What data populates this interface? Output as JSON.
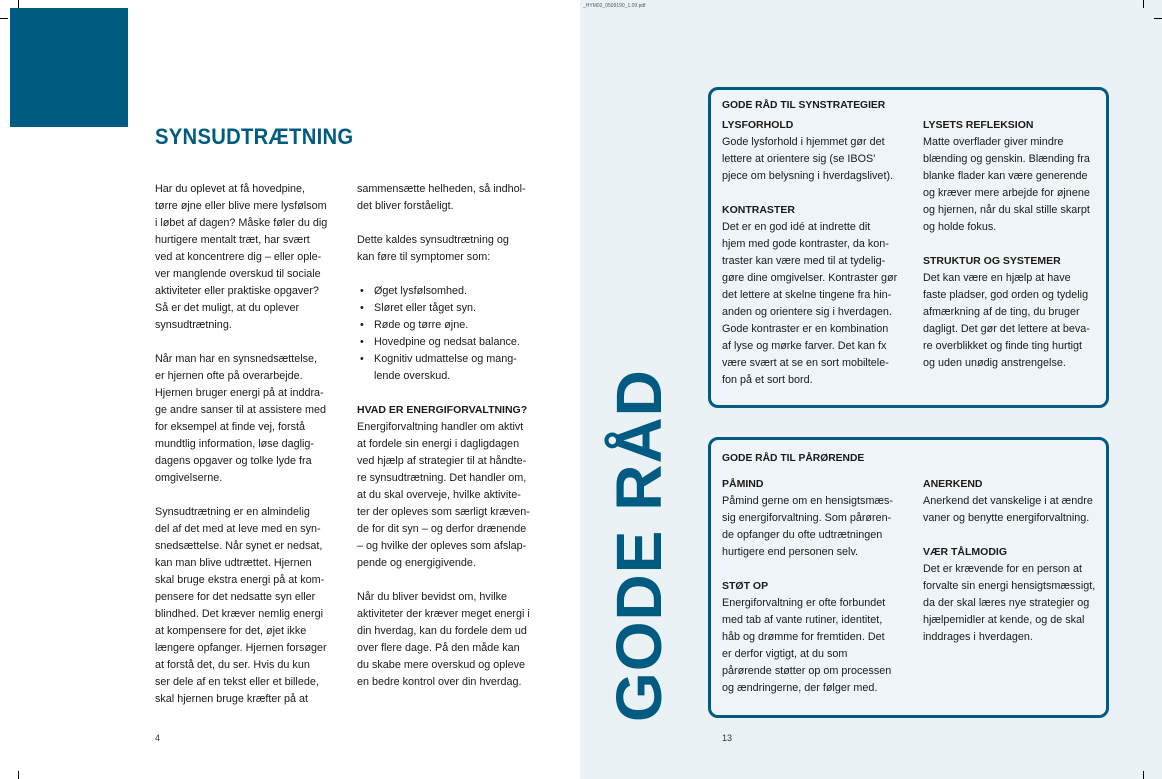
{
  "file_label": "_HYM02_0509190_1.09.pdf",
  "left_page": {
    "title": "SYNSUDTRÆTNING",
    "page_number": "4",
    "col1": [
      "Har du oplevet at få hovedpine,",
      "tørre øjne eller blive mere lysfølsom",
      "i løbet af dagen? Måske føler du dig",
      "hurtigere mentalt træt, har svært",
      "ved at koncentrere dig – eller ople-",
      "ver manglende overskud til sociale",
      "aktiviteter eller praktiske opgaver?",
      "Så er det muligt, at du oplever",
      "synsudtrætning.",
      "",
      "Når man har en synsnedsættelse,",
      "er hjernen ofte på overarbejde.",
      "Hjernen bruger energi på at inddra-",
      "ge andre sanser til at assistere med",
      "for eksempel at finde vej, forstå",
      "mundtlig information, løse daglig-",
      "dagens opgaver og tolke lyde fra",
      "omgivelserne.",
      "",
      "Synsudtrætning er en almindelig",
      "del af det med at leve med en syn-",
      "snedsættelse. Når synet er nedsat,",
      "kan man blive udtrættet. Hjernen",
      "skal bruge ekstra energi på at kom-",
      "pensere for det nedsatte syn eller",
      "blindhed. Det kræver nemlig energi",
      "at kompensere for det, øjet ikke",
      "længere opfanger. Hjernen forsøger",
      "at forstå det, du ser. Hvis du kun",
      "ser dele af en tekst eller et billede,",
      "skal hjernen bruge kræfter på at"
    ],
    "col2_intro": [
      "sammensætte helheden, så indhol-",
      "det bliver forståeligt.",
      "",
      "Dette kaldes synsudtrætning og",
      "kan føre til symptomer som:"
    ],
    "bullets": [
      [
        "Øget lysfølsomhed."
      ],
      [
        "Sløret eller tåget syn."
      ],
      [
        "Røde og tørre øjne."
      ],
      [
        "Hovedpine og nedsat balance."
      ],
      [
        "Kognitiv udmattelse og mang-",
        "lende overskud."
      ]
    ],
    "energy_heading": "HVAD ER ENERGIFORVALTNING?",
    "energy_text": [
      "Energiforvaltning handler om aktivt",
      "at fordele sin energi i dagligdagen",
      "ved hjælp af strategier til at håndte-",
      "re synsudtrætning. Det handler om,",
      "at du skal overveje, hvilke aktivite-",
      "ter der opleves som særligt kræven-",
      "de for dit syn – og derfor drænende",
      "– og hvilke der opleves som afslap-",
      "pende og energigivende.",
      "",
      "Når du bliver bevidst om, hvilke",
      "aktiviteter der kræver meget energi i",
      "din hverdag, kan du fordele dem ud",
      "over flere dage. På den måde kan",
      "du skabe mere overskud og opleve",
      "en bedre kontrol over din hverdag."
    ]
  },
  "right_page": {
    "vertical_title": "GODE RÅD",
    "page_number": "13",
    "accent_color": "#005b82",
    "boxes": [
      {
        "title": "GODE RÅD TIL SYNSTRATEGIER",
        "columns": [
          [
            {
              "heading": "LYSFORHOLD",
              "lines": [
                "Gode lysforhold i hjemmet gør det",
                "lettere at orientere sig (se IBOS'",
                "pjece om belysning i hverdagslivet)."
              ]
            },
            {
              "heading": "KONTRASTER",
              "lines": [
                "Det er en god idé at indrette dit",
                "hjem med gode kontraster, da kon-",
                "traster kan være med til at tydelig-",
                "gøre dine omgivelser. Kontraster gør",
                "det lettere at skelne tingene fra hin-",
                "anden og orientere sig i hverdagen.",
                "Gode kontraster er en kombination",
                "af lyse og mørke farver. Det kan fx",
                "være svært at se en sort mobiltele-",
                "fon på et sort bord."
              ]
            }
          ],
          [
            {
              "heading": "LYSETS REFLEKSION",
              "lines": [
                "Matte overflader giver mindre",
                "blænding og genskin. Blænding fra",
                "blanke flader kan være generende",
                "og kræver mere arbejde for øjnene",
                "og hjernen, når du skal stille skarpt",
                "og holde fokus."
              ]
            },
            {
              "heading": "STRUKTUR OG SYSTEMER",
              "lines": [
                "Det kan være en hjælp at have",
                "faste pladser, god orden og tydelig",
                "afmærkning af de ting, du bruger",
                "dagligt. Det gør det lettere at beva-",
                "re overblikket og finde ting hurtigt",
                "og uden unødig anstrengelse."
              ]
            }
          ]
        ]
      },
      {
        "title": "GODE RÅD TIL PÅRØRENDE",
        "columns": [
          [
            {
              "heading": "PÅMIND",
              "lines": [
                "Påmind gerne om en hensigtsmæs-",
                "sig energiforvaltning. Som pårøren-",
                "de opfanger du ofte udtrætningen",
                "hurtigere end personen selv."
              ]
            },
            {
              "heading": "STØT OP",
              "lines": [
                "Energiforvaltning er ofte forbundet",
                "med tab af vante rutiner, identitet,",
                "håb og drømme for fremtiden. Det",
                "er derfor vigtigt, at du som",
                "pårørende støtter op om processen",
                "og ændringerne, der følger med."
              ]
            }
          ],
          [
            {
              "heading": "ANERKEND",
              "lines": [
                "Anerkend det vanskelige i at ændre",
                "vaner og benytte energiforvaltning."
              ]
            },
            {
              "heading": "VÆR TÅLMODIG",
              "lines": [
                "Det er krævende for en person at",
                "forvalte sin energi hensigtsmæssigt,",
                "da der skal læres nye strategier og",
                "hjælpemidler at kende, og de skal",
                "inddrages i hverdagen."
              ]
            }
          ]
        ]
      }
    ]
  }
}
